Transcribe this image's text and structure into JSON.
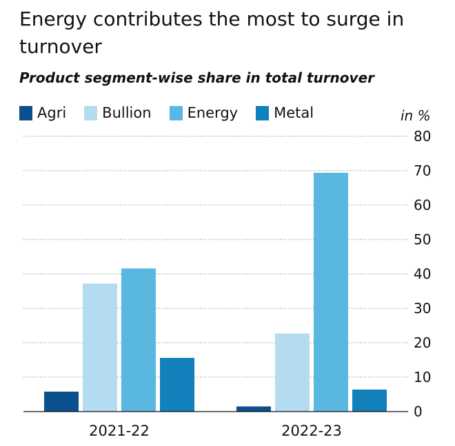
{
  "chart_data": {
    "type": "bar",
    "title": "Energy contributes the most to surge in turnover",
    "subtitle": "Product segment-wise share in total turnover",
    "ylabel": "in %",
    "categories": [
      "2021-22",
      "2022-23"
    ],
    "series": [
      {
        "name": "Agri",
        "color": "#0b4f8c",
        "values": [
          5.8,
          1.5
        ]
      },
      {
        "name": "Bullion",
        "color": "#b3dcf1",
        "values": [
          37.2,
          22.7
        ]
      },
      {
        "name": "Energy",
        "color": "#5ab8e0",
        "values": [
          41.6,
          69.4
        ]
      },
      {
        "name": "Metal",
        "color": "#1180bb",
        "values": [
          15.6,
          6.4
        ]
      }
    ],
    "ylim": [
      0,
      80
    ],
    "yticks": [
      "0",
      "10",
      "20",
      "30",
      "40",
      "50",
      "60",
      "70",
      "80"
    ],
    "grid": true,
    "legend_position": "top-left"
  }
}
